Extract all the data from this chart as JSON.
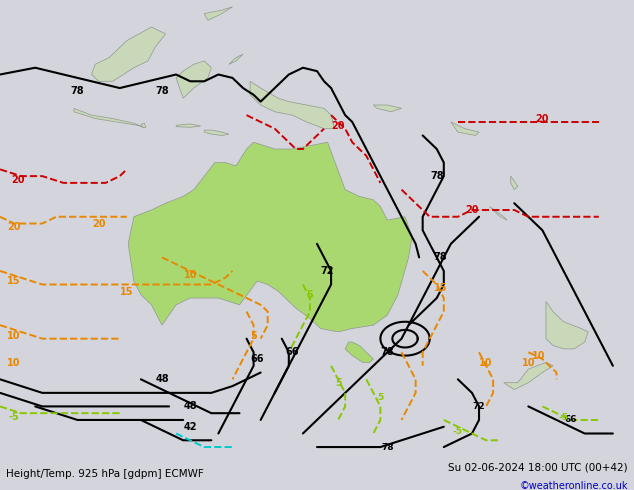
{
  "title_left": "Height/Temp. 925 hPa [gdpm] ECMWF",
  "title_right": "Su 02-06-2024 18:00 UTC (00+42)",
  "copyright": "©weatheronline.co.uk",
  "bg_color": "#d4d4dc",
  "land_color_aus": "#aad870",
  "land_color_other": "#c8d8b8",
  "fig_width": 6.34,
  "fig_height": 4.9,
  "footer_left_color": "#000000",
  "footer_right_color": "#000000",
  "copyright_color": "#0000cc",
  "contour_black_color": "#000000",
  "contour_orange_color": "#e88800",
  "contour_red_color": "#cc0000",
  "contour_green_color": "#88c800",
  "contour_cyan_color": "#00c8c8",
  "lon_min": 95,
  "lon_max": 185,
  "lat_min": -58,
  "lat_max": 10
}
